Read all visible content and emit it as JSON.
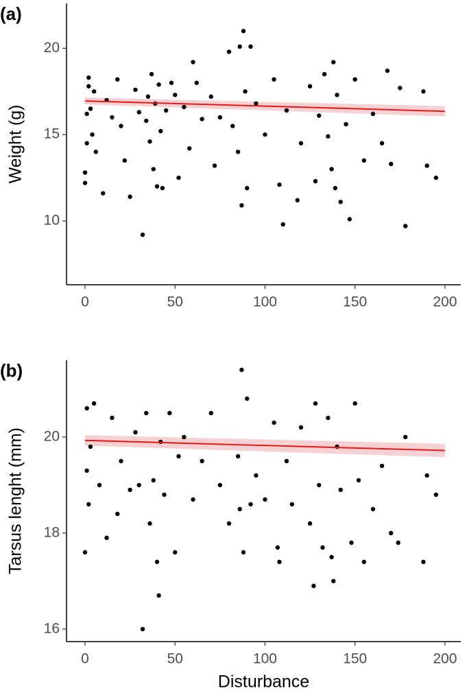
{
  "chart_data": [
    {
      "type": "scatter",
      "panel_label": "(a)",
      "y_label": "Weight (g)",
      "xlim": [
        -10.3,
        208.8
      ],
      "xticks": [
        0,
        50,
        100,
        150,
        200
      ],
      "ylim": [
        6.3,
        22.6
      ],
      "yticks": [
        10,
        15,
        20
      ],
      "color": "#000000",
      "x": [
        0,
        0,
        1,
        1,
        2,
        2,
        3,
        4,
        5,
        6,
        10,
        12,
        15,
        18,
        20,
        22,
        25,
        28,
        30,
        32,
        34,
        35,
        36,
        37,
        38,
        39,
        40,
        41,
        42,
        43,
        45,
        48,
        50,
        52,
        55,
        58,
        60,
        62,
        65,
        70,
        72,
        75,
        80,
        82,
        85,
        86,
        87,
        88,
        89,
        90,
        92,
        95,
        100,
        105,
        108,
        110,
        112,
        118,
        120,
        125,
        128,
        130,
        133,
        135,
        137,
        138,
        139,
        140,
        142,
        145,
        147,
        150,
        155,
        160,
        165,
        168,
        170,
        175,
        178,
        188,
        190,
        195
      ],
      "y": [
        12.2,
        12.8,
        14.5,
        16.2,
        17.8,
        18.3,
        16.5,
        15.0,
        17.5,
        14.0,
        11.6,
        17.0,
        16.0,
        18.2,
        15.5,
        13.5,
        11.4,
        17.6,
        16.3,
        9.2,
        15.8,
        17.2,
        14.6,
        18.5,
        13.0,
        16.8,
        12.0,
        17.9,
        15.2,
        11.9,
        16.4,
        18.0,
        17.3,
        12.5,
        16.6,
        14.2,
        19.2,
        18.0,
        15.9,
        17.2,
        13.2,
        16.0,
        19.8,
        15.5,
        14.0,
        20.1,
        10.9,
        21.0,
        17.5,
        11.9,
        20.1,
        16.8,
        15.0,
        18.2,
        12.1,
        9.8,
        16.4,
        11.2,
        14.5,
        17.8,
        12.3,
        16.1,
        18.5,
        14.9,
        13.0,
        19.2,
        11.9,
        17.3,
        11.1,
        15.6,
        10.1,
        18.2,
        13.5,
        16.2,
        14.5,
        18.7,
        13.3,
        17.7,
        9.7,
        17.5,
        13.2,
        12.5
      ],
      "fit": {
        "color": "#e31a1c",
        "band_color": "#f4c6c8",
        "x": [
          0,
          200
        ],
        "y": [
          16.95,
          16.35
        ],
        "lower": [
          16.75,
          16.05
        ],
        "upper": [
          17.15,
          16.65
        ]
      }
    },
    {
      "type": "scatter",
      "panel_label": "(b)",
      "y_label": "Tarsus lenght (mm)",
      "x_label": "Disturbance",
      "xlim": [
        -10.3,
        208.8
      ],
      "xticks": [
        0,
        50,
        100,
        150,
        200
      ],
      "ylim": [
        15.74,
        21.6
      ],
      "yticks": [
        16,
        18,
        20
      ],
      "color": "#000000",
      "x": [
        0,
        1,
        1,
        2,
        3,
        5,
        8,
        12,
        15,
        18,
        20,
        25,
        28,
        30,
        32,
        34,
        36,
        38,
        40,
        41,
        42,
        44,
        47,
        50,
        52,
        55,
        60,
        65,
        70,
        75,
        80,
        85,
        86,
        87,
        88,
        90,
        92,
        95,
        100,
        105,
        107,
        108,
        112,
        115,
        120,
        125,
        127,
        128,
        130,
        132,
        135,
        137,
        138,
        140,
        142,
        148,
        150,
        152,
        155,
        160,
        165,
        170,
        174,
        178,
        188,
        190,
        195
      ],
      "y": [
        17.6,
        19.3,
        20.6,
        18.6,
        19.8,
        20.7,
        19.0,
        17.9,
        20.4,
        18.4,
        19.5,
        18.9,
        20.1,
        19.0,
        16.0,
        20.5,
        18.2,
        19.1,
        17.4,
        16.7,
        19.9,
        18.8,
        20.5,
        17.6,
        19.6,
        20.0,
        18.7,
        19.5,
        20.5,
        19.0,
        18.2,
        19.6,
        18.5,
        21.4,
        17.6,
        20.8,
        18.6,
        19.2,
        18.7,
        20.3,
        17.7,
        17.4,
        19.5,
        18.6,
        20.2,
        18.2,
        16.9,
        20.7,
        19.0,
        17.7,
        20.4,
        17.5,
        17.0,
        19.8,
        18.9,
        17.8,
        20.7,
        19.1,
        17.4,
        18.5,
        19.4,
        18.0,
        17.8,
        20.0,
        17.4,
        19.2,
        18.8
      ],
      "fit": {
        "color": "#e31a1c",
        "band_color": "#f4c6c8",
        "x": [
          0,
          200
        ],
        "y": [
          19.93,
          19.72
        ],
        "lower": [
          19.82,
          19.58
        ],
        "upper": [
          20.04,
          19.86
        ]
      }
    }
  ]
}
